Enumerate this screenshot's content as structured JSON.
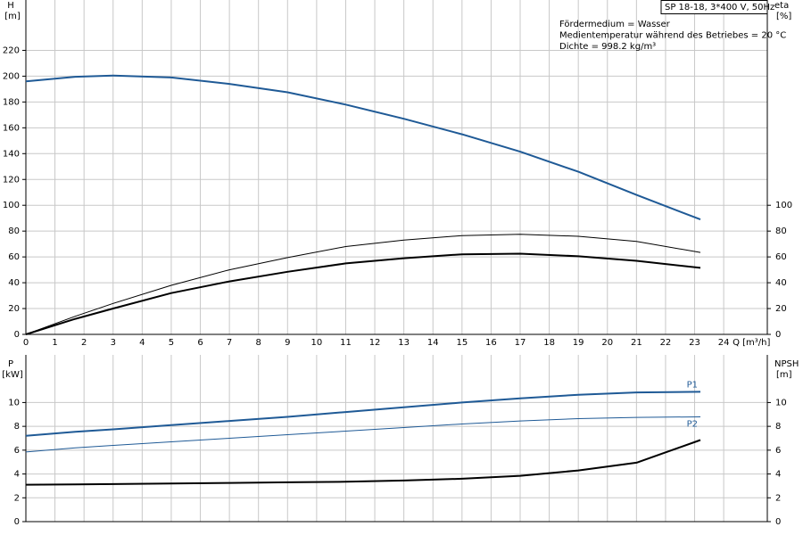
{
  "chart_data": [
    {
      "type": "line",
      "annotations": [
        "SP 18-18, 3*400 V, 50Hz",
        "Fördermedium = Wasser",
        "Medientemperatur während des Betriebes = 20 °C",
        "Dichte = 998.2 kg/m³"
      ],
      "ylabel": "H",
      "yunit": "[m]",
      "y2label": "eta",
      "y2unit": "[%]",
      "xlabel": "Q [m³/h]",
      "x": [
        0,
        1.7,
        3,
        5,
        7,
        9,
        11,
        13,
        15,
        17,
        19,
        21,
        23.2
      ],
      "series": [
        {
          "color": "#1f5a96",
          "weight": "thick",
          "values": [
            196,
            199.5,
            200.5,
            199,
            194,
            187.5,
            178,
            167,
            155,
            141.5,
            126,
            108,
            89
          ]
        },
        {
          "color": "#000000",
          "weight": "thin",
          "axis": "y2",
          "values": [
            0,
            14,
            24,
            38,
            50,
            59.5,
            68,
            73,
            76.5,
            77.5,
            76,
            72,
            63.5
          ]
        },
        {
          "color": "#000000",
          "weight": "thick",
          "axis": "y2",
          "values": [
            0,
            12,
            20,
            32,
            41,
            48.5,
            55,
            59,
            62,
            62.5,
            60.5,
            57,
            51.5
          ]
        }
      ],
      "xlim": [
        0,
        25.5
      ],
      "xticks": [
        0,
        1,
        2,
        3,
        4,
        5,
        6,
        7,
        8,
        9,
        10,
        11,
        12,
        13,
        14,
        15,
        16,
        17,
        18,
        19,
        20,
        21,
        22,
        23,
        24
      ],
      "ylim": [
        0,
        259
      ],
      "yticks": [
        0,
        20,
        40,
        60,
        80,
        100,
        120,
        140,
        160,
        180,
        200,
        220
      ],
      "y2lim": [
        0,
        259
      ],
      "y2ticks": [
        0,
        20,
        40,
        60,
        80,
        100
      ],
      "grid": true
    },
    {
      "type": "line",
      "ylabel": "P",
      "yunit": "[kW]",
      "y2label": "NPSH",
      "y2unit": "[m]",
      "x": [
        0,
        1.7,
        3,
        5,
        7,
        9,
        11,
        13,
        15,
        17,
        19,
        21,
        23.2
      ],
      "series": [
        {
          "name": "P1",
          "color": "#1f5a96",
          "weight": "thick",
          "values": [
            7.2,
            7.55,
            7.75,
            8.1,
            8.45,
            8.8,
            9.2,
            9.6,
            10,
            10.35,
            10.65,
            10.85,
            10.9
          ]
        },
        {
          "name": "P2",
          "color": "#1f5a96",
          "weight": "thin",
          "values": [
            5.85,
            6.2,
            6.4,
            6.7,
            7,
            7.3,
            7.6,
            7.9,
            8.2,
            8.45,
            8.65,
            8.75,
            8.8
          ]
        },
        {
          "color": "#000000",
          "weight": "thick",
          "axis": "y2",
          "values": [
            3.1,
            3.12,
            3.15,
            3.2,
            3.25,
            3.3,
            3.35,
            3.45,
            3.6,
            3.85,
            4.3,
            4.95,
            6.85
          ]
        }
      ],
      "xlim": [
        0,
        25.5
      ],
      "ylim": [
        0,
        14
      ],
      "yticks": [
        0,
        2,
        4,
        6,
        8,
        10
      ],
      "y2lim": [
        0,
        14
      ],
      "y2ticks": [
        0,
        2,
        4,
        6,
        8,
        10
      ],
      "grid": true
    }
  ]
}
